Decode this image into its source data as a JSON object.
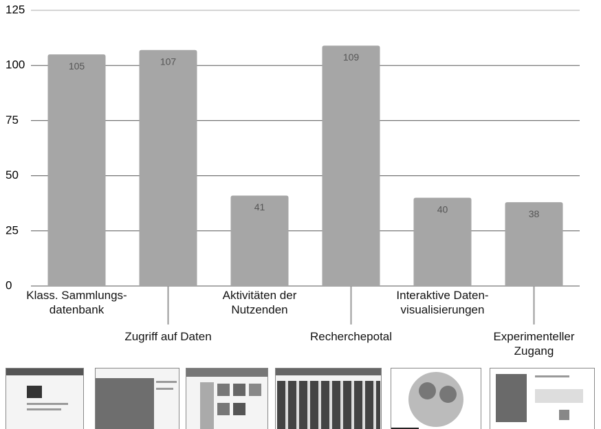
{
  "chart_data": {
    "type": "bar",
    "categories": [
      "Klass. Sammlungs-\ndatenbank",
      "Zugriff auf Daten",
      "Aktivitäten der\nNutzenden",
      "Recherchepotal",
      "Interaktive Daten-\nvisualisierungen",
      "Experimenteller Zugang"
    ],
    "values": [
      105,
      107,
      41,
      109,
      40,
      38
    ],
    "color": "#a6a6a6",
    "ylim": [
      0,
      125
    ],
    "yticks": [
      0,
      25,
      50,
      75,
      100,
      125
    ],
    "grid": true
  }
}
